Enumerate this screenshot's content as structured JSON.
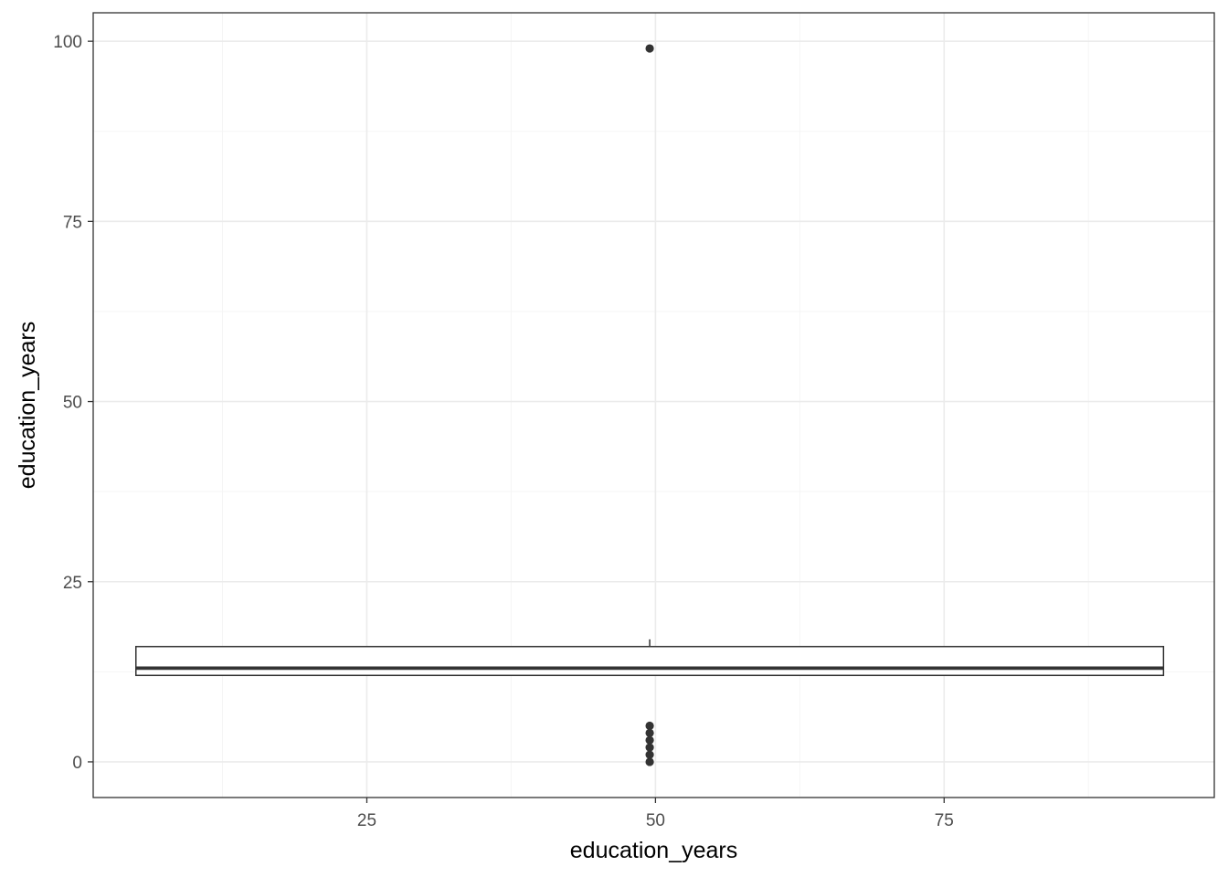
{
  "chart_data": {
    "type": "boxplot",
    "xlabel": "education_years",
    "ylabel": "education_years",
    "xlim": [
      1.3,
      98.4
    ],
    "ylim": [
      -4.95,
      103.95
    ],
    "x_ticks": [
      25,
      50,
      75
    ],
    "y_ticks": [
      0,
      25,
      50,
      75,
      100
    ],
    "grid": true,
    "box": {
      "x_min": 5.0,
      "x_max": 94.0,
      "x_position": 49.5,
      "lower_whisker": 12,
      "q1": 12,
      "median": 13,
      "q3": 16,
      "upper_whisker": 17
    },
    "outliers": [
      0,
      1,
      2,
      3,
      4,
      5,
      99
    ],
    "colors": {
      "panel_border": "#333333",
      "grid_major": "#ebebeb",
      "grid_minor": "#f5f5f5",
      "box_line": "#333333",
      "outlier_fill": "#333333"
    }
  }
}
